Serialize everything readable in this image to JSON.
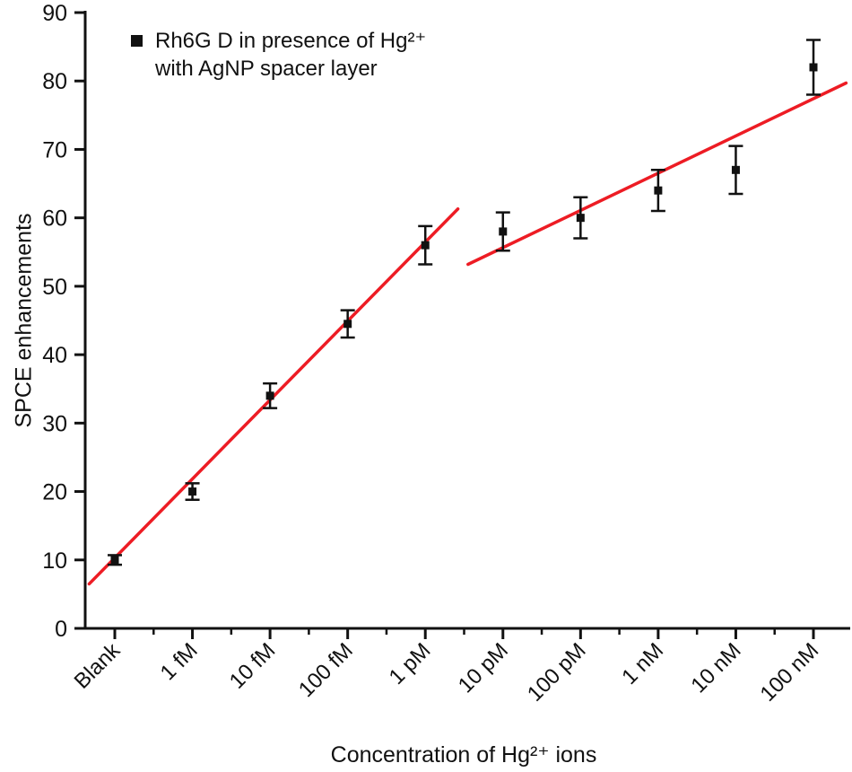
{
  "figure": {
    "legend": {
      "marker_color": "#111111",
      "line1": "Rh6G D in presence of Hg²⁺",
      "line2": "with AgNP spacer layer"
    },
    "xlabel": "Concentration of Hg²⁺ ions",
    "ylabel": "SPCE enhancements"
  },
  "chart_data": {
    "type": "scatter",
    "title": "",
    "xlabel": "Concentration of Hg²⁺ ions",
    "ylabel": "SPCE enhancements",
    "legend": [
      "Rh6G D in presence of Hg²⁺ with AgNP spacer layer"
    ],
    "legend_position": "top-left-inside",
    "grid": false,
    "categories": [
      "Blank",
      "1 fM",
      "10 fM",
      "100 fM",
      "1 pM",
      "10 pM",
      "100 pM",
      "1 nM",
      "10 nM",
      "100 nM"
    ],
    "values": [
      10,
      20,
      34,
      44.5,
      56,
      58,
      60,
      64,
      67,
      82
    ],
    "errors": [
      0.7,
      1.2,
      1.8,
      2.0,
      2.8,
      2.8,
      3.0,
      3.0,
      3.5,
      4.0
    ],
    "ylim": [
      0,
      90
    ],
    "yticks": [
      0,
      10,
      20,
      30,
      40,
      50,
      60,
      70,
      80,
      90
    ],
    "marker": "filled-square",
    "series_color": "#111111",
    "trend_color": "#ed1c24",
    "trend_lines": [
      {
        "x1": -0.33,
        "y1": 6.5,
        "x2": 4.42,
        "y2": 61.3
      },
      {
        "x1": 4.55,
        "y1": 53.2,
        "x2": 9.42,
        "y2": 79.7
      }
    ]
  }
}
